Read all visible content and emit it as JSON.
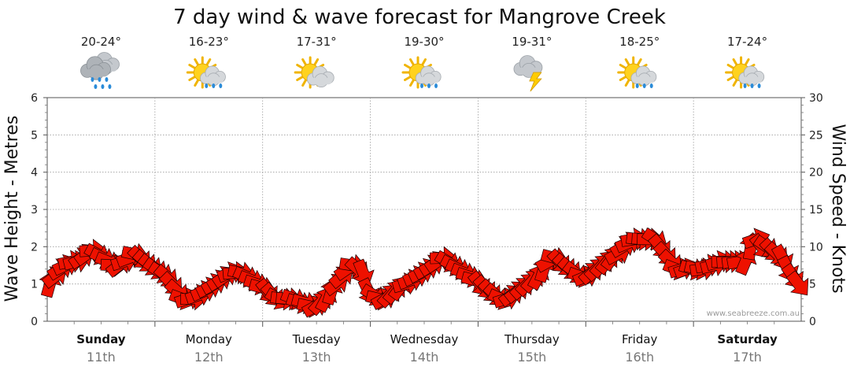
{
  "chart_data": {
    "type": "line",
    "title": "7 day wind & wave forecast for Mangrove Creek",
    "ylabel_left": "Wave Height - Metres",
    "ylabel_right": "Wind Speed - Knots",
    "ylim_left": [
      0,
      6
    ],
    "ylim_right": [
      0,
      30
    ],
    "yticks_left": [
      "0",
      "1",
      "2",
      "3",
      "4",
      "5",
      "6"
    ],
    "yticks_right": [
      "0",
      "5",
      "10",
      "15",
      "20",
      "25",
      "30"
    ],
    "days": [
      {
        "name": "Sunday",
        "date": "11th",
        "temp": "20-24°",
        "icon": "heavy-rain-icon",
        "bold": true
      },
      {
        "name": "Monday",
        "date": "12th",
        "temp": "16-23°",
        "icon": "sun-showers-icon",
        "bold": false
      },
      {
        "name": "Tuesday",
        "date": "13th",
        "temp": "17-31°",
        "icon": "partly-cloudy-icon",
        "bold": false
      },
      {
        "name": "Wednesday",
        "date": "14th",
        "temp": "19-30°",
        "icon": "sun-showers-icon",
        "bold": false
      },
      {
        "name": "Thursday",
        "date": "15th",
        "temp": "19-31°",
        "icon": "thunderstorm-icon",
        "bold": false
      },
      {
        "name": "Friday",
        "date": "16th",
        "temp": "18-25°",
        "icon": "sun-showers-icon",
        "bold": false
      },
      {
        "name": "Saturday",
        "date": "17th",
        "temp": "17-24°",
        "icon": "sun-showers-icon",
        "bold": true
      }
    ],
    "series": [
      {
        "name": "Wind Speed (knots)",
        "color": "#ee1100",
        "values": [
          5,
          6,
          7,
          7.5,
          8,
          8,
          8.5,
          9,
          9.5,
          9,
          8.5,
          8,
          7.5,
          7.5,
          8,
          8.5,
          9,
          8.5,
          8,
          7.5,
          7,
          6.5,
          6,
          5,
          4,
          3,
          3,
          3,
          3.5,
          4,
          4.5,
          5,
          5.5,
          6,
          6.5,
          6.5,
          6.5,
          6,
          5.5,
          5,
          4.5,
          4,
          3.5,
          3,
          3,
          3,
          3,
          2.5,
          2.5,
          2,
          2,
          2.5,
          3,
          4,
          5,
          6,
          7,
          7.5,
          7,
          6.5,
          4,
          3.5,
          3,
          3,
          3.5,
          4,
          4.5,
          5,
          5.5,
          6,
          6.5,
          7,
          7.5,
          8,
          8.5,
          8,
          7.5,
          7,
          6.5,
          6,
          5.5,
          5,
          4.5,
          4,
          3.5,
          3,
          3,
          3.5,
          4,
          4.5,
          5,
          5.5,
          6,
          7,
          8,
          8.5,
          8,
          7.5,
          7,
          6.5,
          6,
          6,
          6.5,
          7,
          7.5,
          8,
          8.5,
          9,
          10,
          10.5,
          11,
          11,
          11,
          11,
          11,
          10,
          9,
          8,
          7,
          7,
          7,
          7,
          7,
          7,
          7.5,
          7.5,
          8,
          8,
          8,
          8,
          8,
          8,
          10,
          11,
          10,
          10,
          9.5,
          9,
          8.5,
          7,
          6,
          5
        ]
      }
    ],
    "watermark": "www.seabreeze.com.au"
  }
}
